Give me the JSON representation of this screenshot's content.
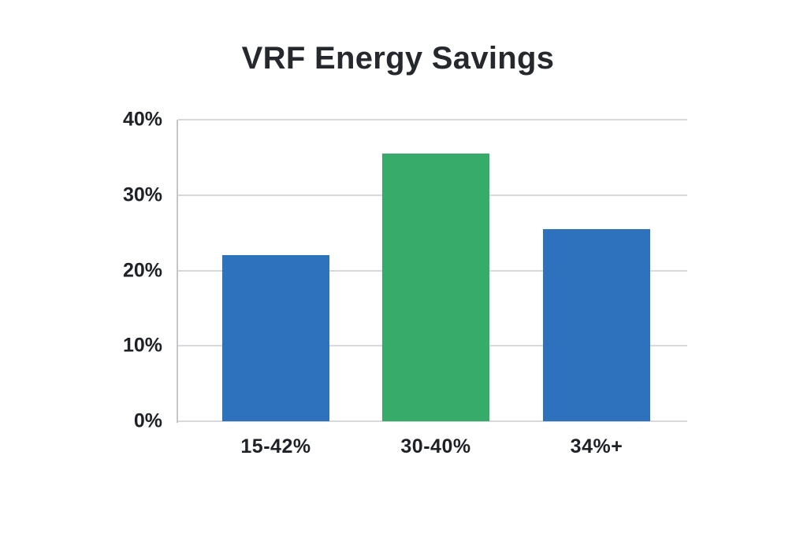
{
  "page": {
    "background": "#FFFFFF"
  },
  "chart_data": {
    "type": "bar",
    "title": "VRF Energy Savings",
    "categories": [
      "15-42%",
      "30-40%",
      "34%+"
    ],
    "values": [
      22,
      35.5,
      25.5
    ],
    "bar_colors": [
      "#2E71BC",
      "#36AB6A",
      "#2E71BC"
    ],
    "ylim": [
      0,
      40
    ],
    "yticks": [
      {
        "value": 0,
        "label": "0%"
      },
      {
        "value": 10,
        "label": "10%"
      },
      {
        "value": 20,
        "label": "20%"
      },
      {
        "value": 30,
        "label": "30%"
      },
      {
        "value": 40,
        "label": "40%"
      }
    ],
    "xlabel": "",
    "ylabel": "",
    "grid": "horizontal",
    "legend": "none",
    "colors": {
      "title_text": "#25282D",
      "axis_text": "#1E2125",
      "gridline": "#D9D9DC",
      "axis_line": "#C4C7CA",
      "background": "#FFFFFF"
    }
  }
}
